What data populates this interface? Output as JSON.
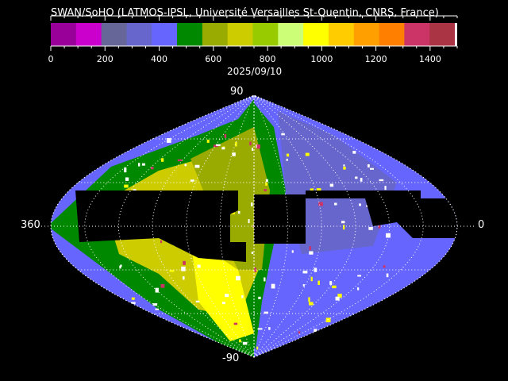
{
  "chart_data": {
    "type": "heatmap",
    "title": "SWAN/SoHO (LATMOS-IPSL, Université Versailles St-Quentin, CNRS, France)",
    "date": "2025/09/10",
    "projection": "sinusoidal",
    "colorbar": {
      "range": [
        0,
        1500
      ],
      "tick_labels": [
        "0",
        "200",
        "400",
        "600",
        "800",
        "1000",
        "1200",
        "1400"
      ],
      "tick_values": [
        0,
        200,
        400,
        600,
        800,
        1000,
        1200,
        1400
      ],
      "colors": [
        "#990099",
        "#cc00cc",
        "#666699",
        "#6666cc",
        "#6666ff",
        "#008800",
        "#99aa00",
        "#cccc00",
        "#99cc00",
        "#ccff77",
        "#ffff00",
        "#ffcc00",
        "#ffa000",
        "#ff8000",
        "#cc3366",
        "#aa3344"
      ],
      "overflow_color": "#ffffff"
    },
    "axis_labels": {
      "top": "90",
      "bottom": "-90",
      "left": "360",
      "right": "0"
    },
    "grid": true,
    "no_data_color": "#000000"
  }
}
